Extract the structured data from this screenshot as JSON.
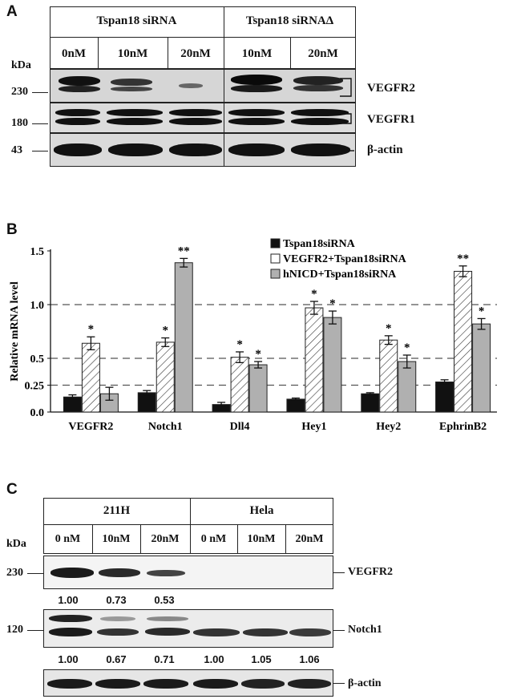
{
  "panelA": {
    "letter": "A",
    "group1": "Tspan18 siRNA",
    "group2": "Tspan18 siRNAΔ",
    "lanes": [
      "0nM",
      "10nM",
      "20nM",
      "10nM",
      "20nM"
    ],
    "kda_label": "kDa",
    "markers": [
      "230",
      "180",
      "43"
    ],
    "proteins": [
      "VEGFR2",
      "VEGFR1",
      "β-actin"
    ]
  },
  "panelB": {
    "letter": "B",
    "chart_data": {
      "type": "bar",
      "ylabel": "Relative mRNA level",
      "ylim": [
        0,
        1.5
      ],
      "yticks": [
        "0.0",
        "0.25",
        "0.5",
        "1.0",
        "1.5"
      ],
      "ytick_values": [
        0,
        0.25,
        0.5,
        1.0,
        1.5
      ],
      "dashed_lines": [
        0.25,
        0.5,
        1.0
      ],
      "legend_position": "top-right",
      "categories": [
        "VEGFR2",
        "Notch1",
        "Dll4",
        "Hey1",
        "Hey2",
        "EphrinB2"
      ],
      "series": [
        {
          "name": "Tspan18siRNA",
          "fill": "#111111",
          "hatch": false,
          "values": [
            0.14,
            0.18,
            0.07,
            0.12,
            0.17,
            0.28
          ],
          "errors": [
            0.02,
            0.02,
            0.02,
            0.01,
            0.01,
            0.02
          ],
          "sig": [
            "",
            "",
            "",
            "",
            "",
            ""
          ]
        },
        {
          "name": "VEGFR2+Tspan18siRNA",
          "fill": "#ffffff",
          "hatch": true,
          "values": [
            0.64,
            0.65,
            0.51,
            0.97,
            0.67,
            1.31
          ],
          "errors": [
            0.06,
            0.04,
            0.05,
            0.06,
            0.04,
            0.05
          ],
          "sig": [
            "*",
            "*",
            "*",
            "*",
            "*",
            "**"
          ]
        },
        {
          "name": "hNICD+Tspan18siRNA",
          "fill": "#b0b0b0",
          "hatch": false,
          "values": [
            0.17,
            1.39,
            0.44,
            0.88,
            0.47,
            0.82
          ],
          "errors": [
            0.06,
            0.04,
            0.03,
            0.06,
            0.06,
            0.05
          ],
          "sig": [
            "",
            "**",
            "*",
            "*",
            "*",
            "*"
          ]
        }
      ]
    }
  },
  "panelC": {
    "letter": "C",
    "group1": "211H",
    "group2": "Hela",
    "lanes": [
      "0 nM",
      "10nM",
      "20nM",
      "0 nM",
      "10nM",
      "20nM"
    ],
    "kda_label": "kDa",
    "markers": [
      "230",
      "120"
    ],
    "proteins": [
      "VEGFR2",
      "Notch1",
      "β-actin"
    ],
    "vegfr2_ratios": [
      "1.00",
      "0.73",
      "0.53"
    ],
    "notch1_ratios": [
      "1.00",
      "0.67",
      "0.71",
      "1.00",
      "1.05",
      "1.06"
    ]
  }
}
